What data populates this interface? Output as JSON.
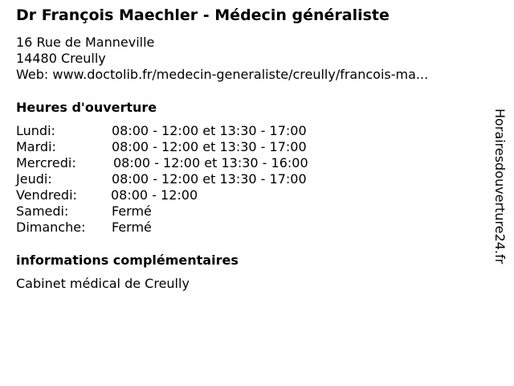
{
  "title": "Dr François Maechler - Médecin généraliste",
  "address": {
    "street": "16 Rue de Manneville",
    "city": "14480 Creully",
    "web": "Web: www.doctolib.fr/medecin-generaliste/creully/francois-ma..."
  },
  "hours": {
    "heading": "Heures d'ouverture",
    "rows": [
      {
        "day": "Lundi:",
        "time": "08:00 - 12:00 et 13:30 - 17:00"
      },
      {
        "day": "Mardi:",
        "time": "08:00 - 12:00 et 13:30 - 17:00"
      },
      {
        "day": "Mercredi:",
        "time": "08:00 - 12:00 et 13:30 - 16:00"
      },
      {
        "day": "Jeudi:",
        "time": "08:00 - 12:00 et 13:30 - 17:00"
      },
      {
        "day": "Vendredi:",
        "time": "08:00 - 12:00"
      },
      {
        "day": "Samedi:",
        "time": "Fermé"
      },
      {
        "day": "Dimanche:",
        "time": "Fermé"
      }
    ]
  },
  "info": {
    "heading": "informations complémentaires",
    "text": "Cabinet médical de Creully"
  },
  "watermark": "Horairesdouverture24.fr"
}
